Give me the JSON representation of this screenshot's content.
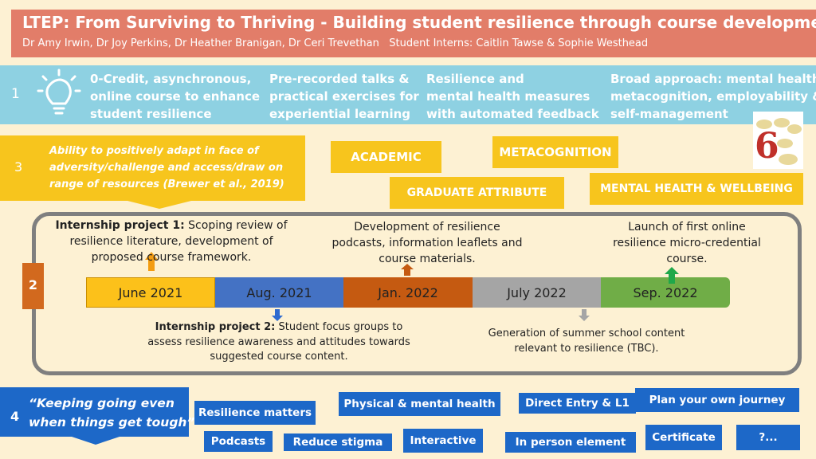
{
  "header": {
    "title": "LTEP: From Surviving to Thriving - Building student resilience through course development",
    "authors": "Dr Amy Irwin, Dr Joy Perkins, Dr Heather Branigan, Dr Ceri Trevethan",
    "interns": "Student Interns: Caitlin Tawse & Sophie Westhead"
  },
  "section1": {
    "number": "1",
    "items": [
      {
        "lines": [
          "0-Credit, asynchronous,",
          "online course to enhance",
          "student resilience"
        ]
      },
      {
        "lines": [
          "Pre-recorded talks &",
          "practical exercises for",
          "experiential learning"
        ]
      },
      {
        "lines": [
          "Resilience and",
          "mental health measures",
          "with automated feedback"
        ]
      },
      {
        "lines": [
          "Broad approach: mental health,",
          "metacognition, employability &",
          "self-management"
        ]
      }
    ]
  },
  "section3": {
    "number": "3",
    "lines": [
      "Ability to positively adapt in face of",
      "adversity/challenge and access/draw on",
      "range of resources (Brewer et al., 2019)"
    ],
    "tags": [
      "ACADEMIC",
      "METACOGNITION",
      "GRADUATE ATTRIBUTE",
      "MENTAL HEALTH & WELLBEING"
    ],
    "image_label": "6"
  },
  "section2": {
    "number": "2",
    "timeline": [
      "June 2021",
      "Aug. 2021",
      "Jan. 2022",
      "July 2022",
      "Sep. 2022"
    ],
    "above": [
      {
        "bold": "Internship project 1:",
        "lines": [
          "Scoping review of",
          "resilience literature, development of",
          "proposed course framework."
        ]
      },
      {
        "lines": [
          "Development of resilience",
          "podcasts, information leaflets and",
          "course materials."
        ]
      },
      {
        "lines": [
          "Launch of first online",
          "resilience micro-credential",
          "course."
        ]
      }
    ],
    "below": [
      {
        "bold": "Internship project 2:",
        "lines": [
          "Student focus groups to",
          "assess resilience awareness and attitudes towards",
          "suggested course content."
        ]
      },
      {
        "lines": [
          "Generation of summer school content",
          "relevant to resilience (TBC)."
        ]
      }
    ]
  },
  "section4": {
    "number": "4",
    "quote": [
      "“Keeping going even",
      "when things get tough”"
    ],
    "tags": [
      "Resilience matters",
      "Podcasts",
      "Reduce stigma",
      "Physical & mental health",
      "Interactive",
      "Direct Entry & L1",
      "In person element",
      "Plan your own journey",
      "Certificate",
      "?..."
    ]
  }
}
